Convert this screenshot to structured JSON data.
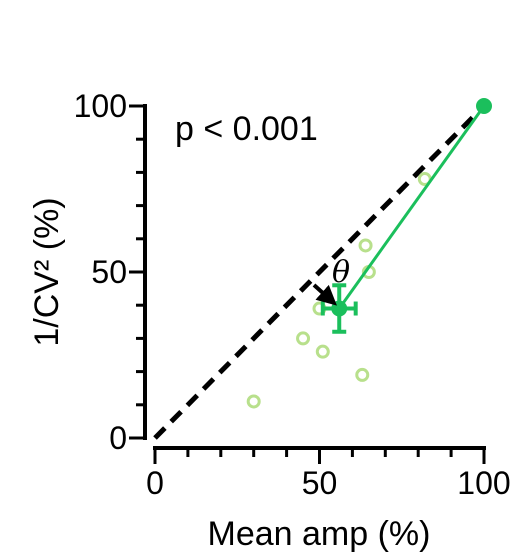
{
  "chart_data": {
    "type": "scatter",
    "title": "",
    "xlabel": "Mean amp (%)",
    "ylabel": "1/CV² (%)",
    "xlim": [
      0,
      100
    ],
    "ylim": [
      0,
      100
    ],
    "x_ticks": [
      "0",
      "50",
      "100"
    ],
    "y_ticks": [
      "0",
      "50",
      "100"
    ],
    "x_minor_step": 10,
    "y_minor_step": 10,
    "grid": false,
    "legend": "none",
    "annotation": "p < 0.001",
    "angle_label": "θ",
    "colors": {
      "individual_points": "#b8e08c",
      "mean_series": "#1bbf5c",
      "unity_line": "#000000",
      "axes": "#000000"
    },
    "unity_line": {
      "x": [
        0,
        100
      ],
      "y": [
        0,
        100
      ],
      "style": "dashed"
    },
    "series": [
      {
        "kind": "individual",
        "points": [
          {
            "x": 30,
            "y": 11
          },
          {
            "x": 45,
            "y": 30
          },
          {
            "x": 50,
            "y": 39
          },
          {
            "x": 51,
            "y": 26
          },
          {
            "x": 63,
            "y": 19
          },
          {
            "x": 64,
            "y": 58
          },
          {
            "x": 65,
            "y": 50
          },
          {
            "x": 82,
            "y": 78
          }
        ]
      },
      {
        "kind": "mean",
        "points": [
          {
            "x": 56,
            "y": 39,
            "x_err": 5,
            "y_err": 7
          },
          {
            "x": 100,
            "y": 100,
            "x_err": 0,
            "y_err": 0
          }
        ]
      }
    ]
  }
}
